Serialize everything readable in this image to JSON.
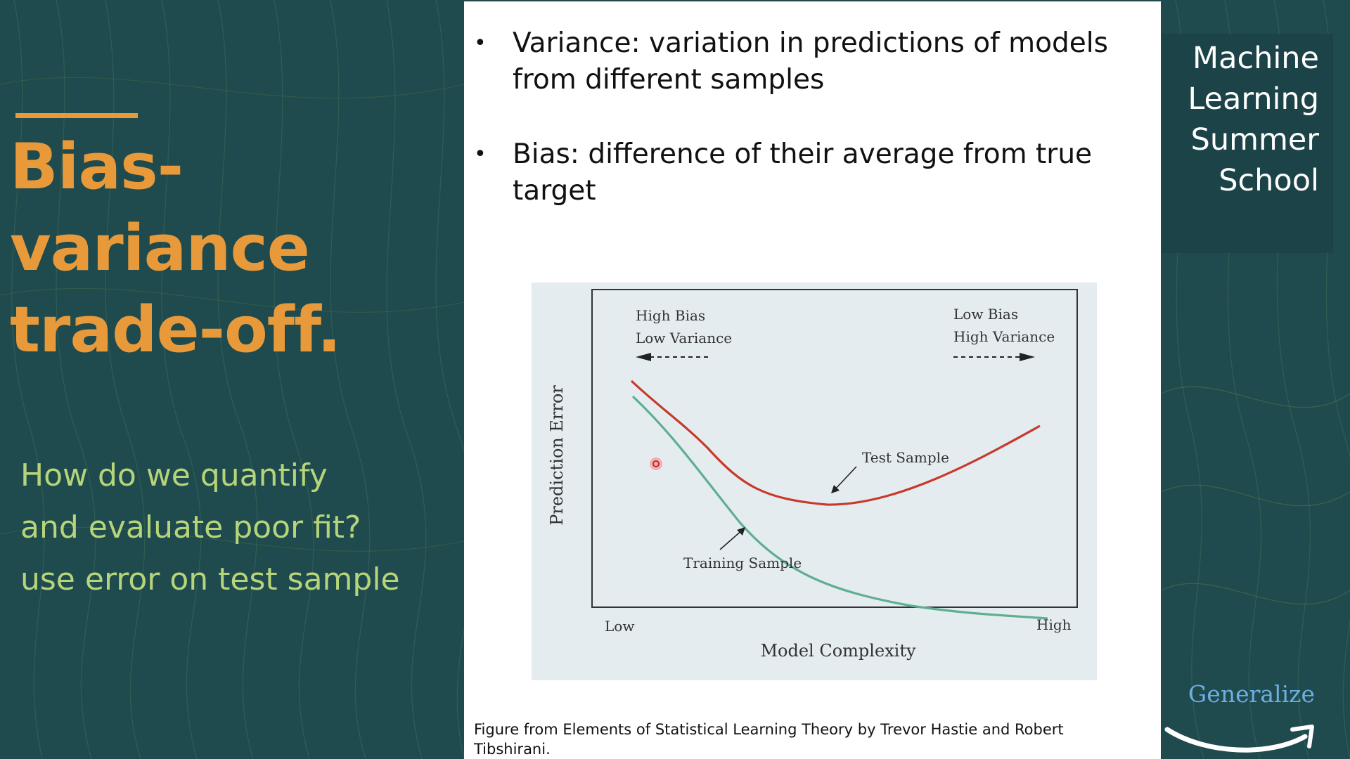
{
  "slide": {
    "title_line1": "Bias-variance",
    "title_line2": "trade-off.",
    "subtitle_lines": [
      "How do we quantify",
      "and evaluate poor fit?",
      "use error on test sample"
    ]
  },
  "bullets": [
    {
      "line1": "Variance: variation in predictions of models",
      "line2": "from different samples"
    },
    {
      "line1": "Bias: difference of their average from true",
      "line2": "target"
    }
  ],
  "figure": {
    "ylabel": "Prediction Error",
    "xlabel": "Model Complexity",
    "x_low": "Low",
    "x_high": "High",
    "left_regime_line1": "High Bias",
    "left_regime_line2": "Low Variance",
    "right_regime_line1": "Low Bias",
    "right_regime_line2": "High Variance",
    "test_label": "Test Sample",
    "train_label": "Training Sample",
    "test_color": "#c8392a",
    "train_color": "#5fae8f",
    "caption_line1": "Figure from Elements of Statistical Learning Theory by Trevor Hastie and Robert",
    "caption_line2": "Tibshirani."
  },
  "brand": {
    "title_lines": [
      "Machine",
      "Learning",
      "Summer",
      "School"
    ],
    "tagline": "Generalize"
  },
  "colors": {
    "background": "#1f4a4e",
    "accent": "#e89a3a",
    "subtitle": "#b6d57a",
    "panel": "#ffffff",
    "tagline": "#6eaee0"
  },
  "icons": {
    "brand_logo": "smile-arrow-icon",
    "pointer": "cursor-dot-icon"
  }
}
